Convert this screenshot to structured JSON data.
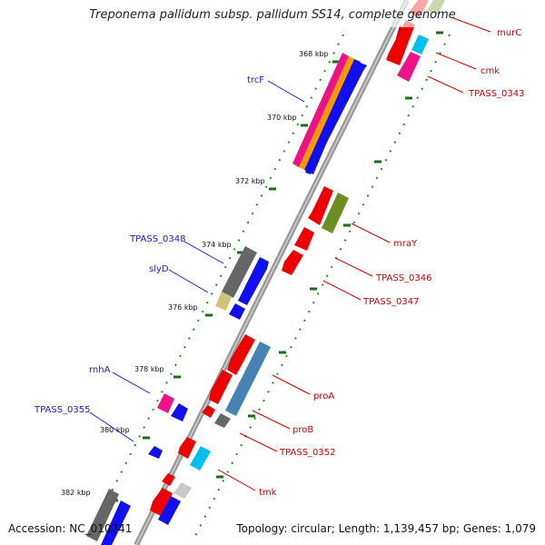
{
  "title": "Treponema pallidum subsp. pallidum SS14, complete genome",
  "footer": {
    "accession": "Accession: NC_010741",
    "summary": "Topology: circular; Length: 1,139,457 bp; Genes: 1,079"
  },
  "colors": {
    "backbone": "#8a8a8a",
    "forward_label": "#1a1acc",
    "reverse_label": "#cc0000",
    "tick": "#1a6e1a",
    "red": "#ee0000",
    "blue": "#1010ee",
    "magenta": "#ee1188",
    "orange": "#ff9900",
    "olive": "#6b8e23",
    "cyan": "#00bfef",
    "gray": "#666666",
    "khaki": "#cdc47a",
    "steelblue": "#4682b4",
    "lightgray": "#c8c8c8"
  },
  "ticks": [
    "368 kbp",
    "370 kbp",
    "372 kbp",
    "374 kbp",
    "376 kbp",
    "378 kbp",
    "380 kbp",
    "382 kbp"
  ],
  "labels_forward": [
    "trcF",
    "TPASS_0348",
    "slyD",
    "rnhA",
    "TPASS_0355"
  ],
  "labels_reverse": [
    "murC",
    "cmk",
    "TPASS_0343",
    "mraY",
    "TPASS_0346",
    "TPASS_0347",
    "proA",
    "proB",
    "TPASS_0352",
    "tmk"
  ]
}
